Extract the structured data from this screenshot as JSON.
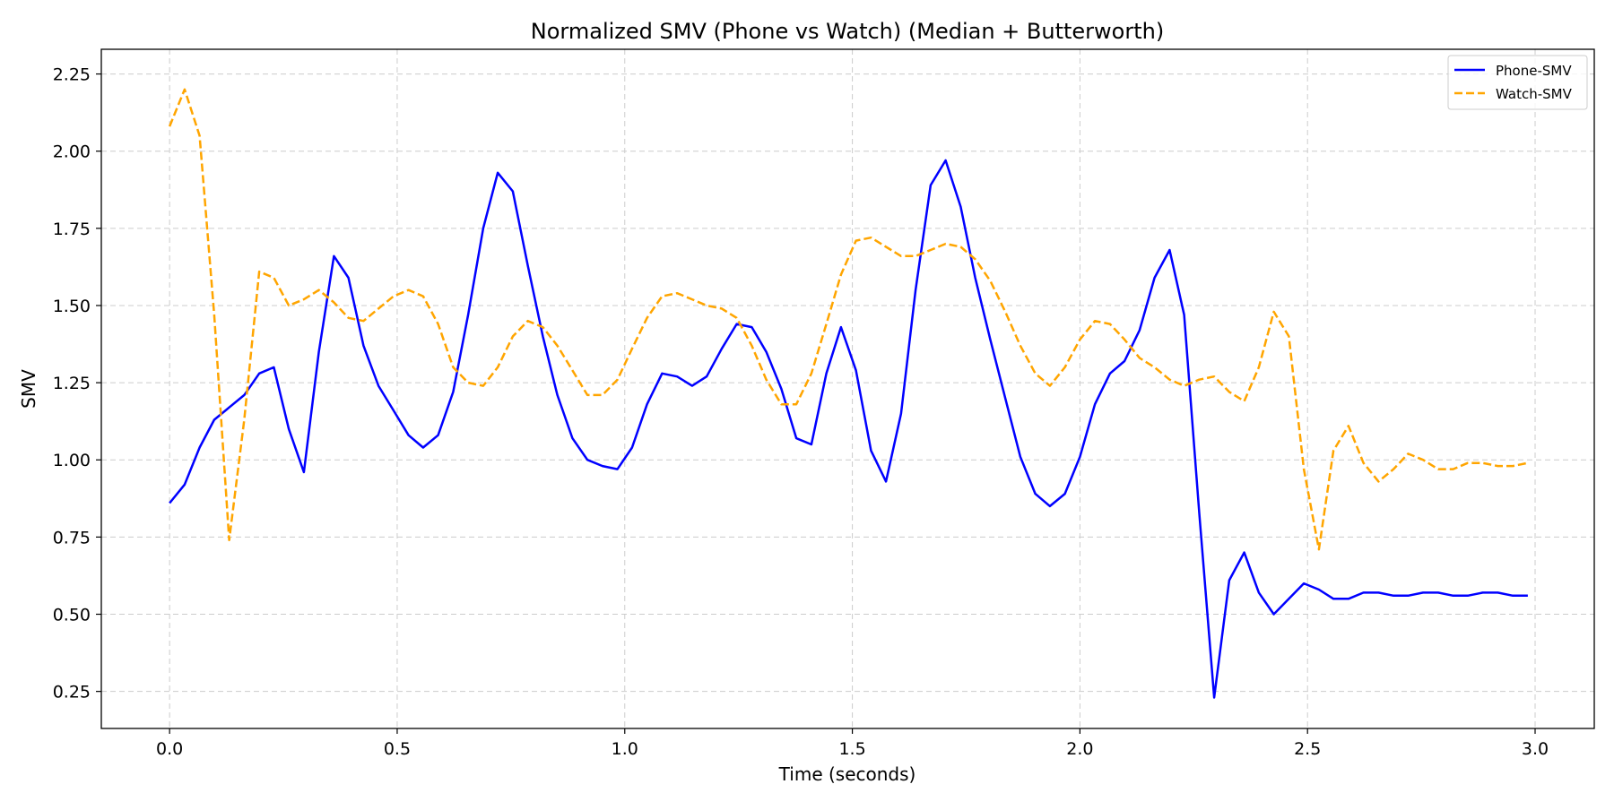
{
  "chart_data": {
    "type": "line",
    "title": "Normalized SMV (Phone vs Watch) (Median + Butterworth)",
    "xlabel": "Time (seconds)",
    "ylabel": "SMV",
    "xlim": [
      -0.15,
      3.13
    ],
    "ylim": [
      0.13,
      2.33
    ],
    "xticks": [
      0.0,
      0.5,
      1.0,
      1.5,
      2.0,
      2.5,
      3.0
    ],
    "xtick_labels": [
      "0.0",
      "0.5",
      "1.0",
      "1.5",
      "2.0",
      "2.5",
      "3.0"
    ],
    "yticks": [
      0.25,
      0.5,
      0.75,
      1.0,
      1.25,
      1.5,
      1.75,
      2.0,
      2.25
    ],
    "ytick_labels": [
      "0.25",
      "0.50",
      "0.75",
      "1.00",
      "1.25",
      "1.50",
      "1.75",
      "2.00",
      "2.25"
    ],
    "grid": true,
    "legend_position": "top-right",
    "x": [
      0.0,
      0.033,
      0.066,
      0.098,
      0.131,
      0.164,
      0.197,
      0.229,
      0.262,
      0.295,
      0.328,
      0.361,
      0.393,
      0.426,
      0.459,
      0.492,
      0.525,
      0.557,
      0.59,
      0.623,
      0.656,
      0.689,
      0.721,
      0.754,
      0.787,
      0.82,
      0.852,
      0.885,
      0.918,
      0.951,
      0.984,
      1.016,
      1.049,
      1.082,
      1.115,
      1.148,
      1.18,
      1.213,
      1.246,
      1.279,
      1.311,
      1.344,
      1.377,
      1.41,
      1.443,
      1.475,
      1.508,
      1.541,
      1.574,
      1.607,
      1.639,
      1.672,
      1.705,
      1.738,
      1.77,
      1.803,
      1.836,
      1.869,
      1.902,
      1.934,
      1.967,
      2.0,
      2.033,
      2.066,
      2.098,
      2.131,
      2.164,
      2.197,
      2.229,
      2.262,
      2.295,
      2.328,
      2.361,
      2.393,
      2.426,
      2.459,
      2.492,
      2.525,
      2.557,
      2.59,
      2.623,
      2.656,
      2.689,
      2.721,
      2.754,
      2.787,
      2.82,
      2.852,
      2.885,
      2.918,
      2.951,
      2.984
    ],
    "series": [
      {
        "name": "Phone-SMV",
        "color": "#0000ff",
        "style": "solid",
        "values": [
          0.86,
          0.92,
          1.04,
          1.13,
          1.17,
          1.21,
          1.28,
          1.3,
          1.1,
          0.96,
          1.35,
          1.66,
          1.59,
          1.37,
          1.24,
          1.16,
          1.08,
          1.04,
          1.08,
          1.22,
          1.47,
          1.75,
          1.93,
          1.87,
          1.63,
          1.4,
          1.21,
          1.07,
          1.0,
          0.98,
          0.97,
          1.04,
          1.18,
          1.28,
          1.27,
          1.24,
          1.27,
          1.36,
          1.44,
          1.43,
          1.35,
          1.23,
          1.07,
          1.05,
          1.28,
          1.43,
          1.29,
          1.03,
          0.93,
          1.15,
          1.55,
          1.89,
          1.97,
          1.82,
          1.59,
          1.39,
          1.2,
          1.01,
          0.89,
          0.85,
          0.89,
          1.01,
          1.18,
          1.28,
          1.32,
          1.42,
          1.59,
          1.68,
          1.47,
          0.83,
          0.23,
          0.61,
          0.7,
          0.57,
          0.5,
          0.55,
          0.6,
          0.58,
          0.55,
          0.55,
          0.57,
          0.57,
          0.56,
          0.56,
          0.57,
          0.57,
          0.56,
          0.56,
          0.57,
          0.57,
          0.56,
          0.56
        ]
      },
      {
        "name": "Watch-SMV",
        "color": "#ffa500",
        "style": "dashed",
        "values": [
          2.08,
          2.2,
          2.05,
          1.47,
          0.74,
          1.13,
          1.61,
          1.59,
          1.5,
          1.52,
          1.55,
          1.51,
          1.46,
          1.45,
          1.49,
          1.53,
          1.55,
          1.53,
          1.44,
          1.3,
          1.25,
          1.24,
          1.3,
          1.4,
          1.45,
          1.43,
          1.37,
          1.29,
          1.21,
          1.21,
          1.26,
          1.36,
          1.46,
          1.53,
          1.54,
          1.52,
          1.5,
          1.49,
          1.46,
          1.37,
          1.26,
          1.18,
          1.18,
          1.28,
          1.44,
          1.6,
          1.71,
          1.72,
          1.69,
          1.66,
          1.66,
          1.68,
          1.7,
          1.69,
          1.65,
          1.58,
          1.48,
          1.37,
          1.28,
          1.24,
          1.3,
          1.39,
          1.45,
          1.44,
          1.39,
          1.33,
          1.3,
          1.26,
          1.24,
          1.26,
          1.27,
          1.22,
          1.19,
          1.3,
          1.48,
          1.4,
          0.97,
          0.71,
          1.03,
          1.11,
          0.99,
          0.93,
          0.97,
          1.02,
          1.0,
          0.97,
          0.97,
          0.99,
          0.99,
          0.98,
          0.98,
          0.99
        ]
      }
    ]
  }
}
